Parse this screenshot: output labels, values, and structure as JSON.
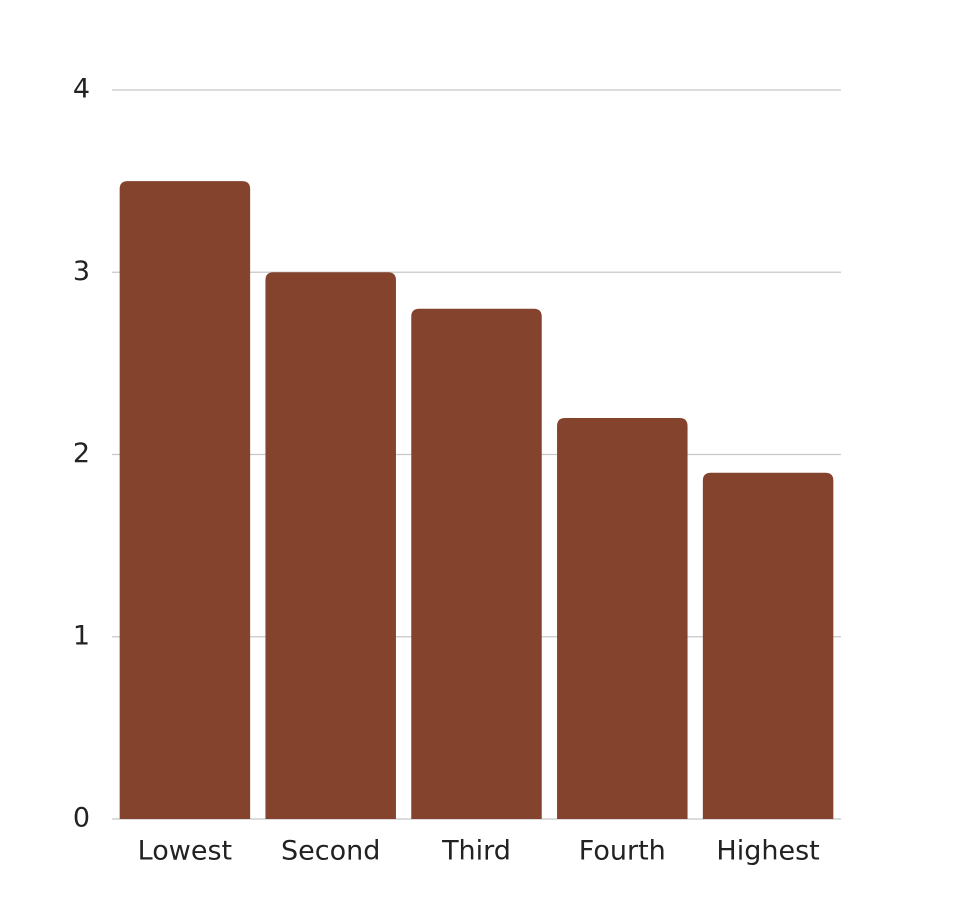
{
  "chart_data": {
    "type": "bar",
    "categories": [
      "Lowest",
      "Second",
      "Third",
      "Fourth",
      "Highest"
    ],
    "values": [
      3.5,
      3.0,
      2.8,
      2.2,
      1.9
    ],
    "color": "#83432d",
    "ylim": [
      0,
      4
    ],
    "yticks": [
      0,
      1,
      2,
      3,
      4
    ],
    "grid": true
  }
}
